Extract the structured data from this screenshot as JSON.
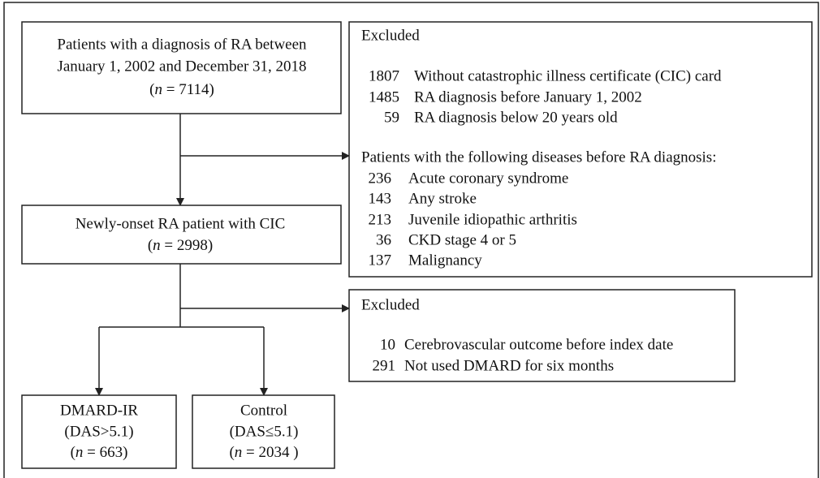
{
  "nodes": [
    {
      "lines": [
        "Patients with a diagnosis of RA between",
        "January 1, 2002 and December 31, 2018"
      ],
      "count": [
        "(",
        "n",
        " = 7114)"
      ]
    },
    {
      "lines": [
        "Newly-onset RA patient with CIC"
      ],
      "count": [
        "(",
        "n",
        " = 2998)"
      ]
    },
    {
      "lines": [
        "DMARD-IR",
        "(DAS>5.1)"
      ],
      "count": [
        "(",
        "n",
        " = 663)"
      ]
    },
    {
      "lines": [
        "Control",
        "(DAS≤5.1)"
      ],
      "count": [
        "(",
        "n",
        " = 2034 )"
      ]
    }
  ],
  "exclusions": [
    {
      "title": "Excluded",
      "items": [
        {
          "count": "1807",
          "label": "Without catastrophic illness certificate (CIC) card"
        },
        {
          "count": "1485",
          "label": "RA diagnosis before January 1, 2002"
        },
        {
          "count": "59",
          "label": "RA diagnosis below 20 years old"
        }
      ],
      "subtitle": "Patients with the following diseases before RA diagnosis:",
      "subitems": [
        {
          "count": "236",
          "label": "Acute coronary syndrome"
        },
        {
          "count": "143",
          "label": "Any stroke"
        },
        {
          "count": "213",
          "label": "Juvenile idiopathic arthritis"
        },
        {
          "count": "36",
          "label": "CKD stage 4 or 5"
        },
        {
          "count": "137",
          "label": "Malignancy"
        }
      ]
    },
    {
      "title": "Excluded",
      "items": [
        {
          "count": "10",
          "label": "Cerebrovascular outcome before index date"
        },
        {
          "count": "291",
          "label": "Not used DMARD for six months"
        }
      ]
    }
  ]
}
